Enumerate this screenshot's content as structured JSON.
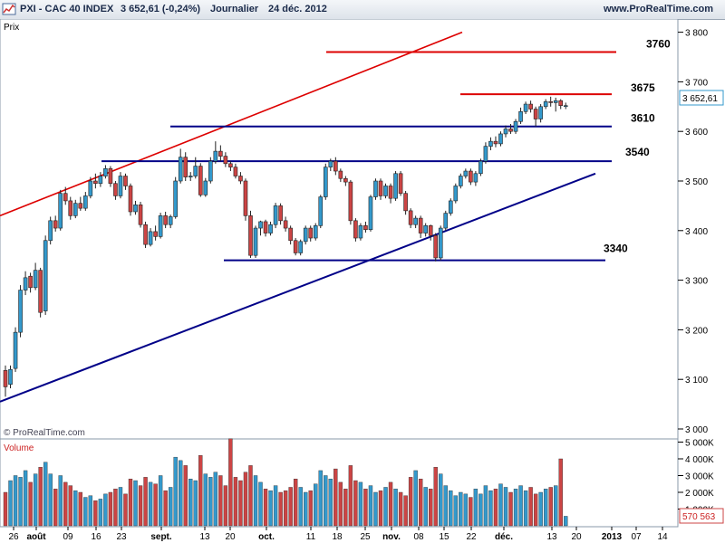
{
  "header": {
    "symbol": "PXI - CAC 40 INDEX",
    "quote": "3 652,61 (-0,24%)",
    "period": "Journalier",
    "date": "24 déc. 2012",
    "site": "www.ProRealTime.com"
  },
  "price_label": "Prix",
  "copyright": "© ProRealTime.com",
  "volume_label": "Volume",
  "current_price_tag": "3 652,61",
  "current_volume_tag": "570 563",
  "colors": {
    "up": "#3399cc",
    "down": "#cc4444",
    "support": "#000088",
    "resistance": "#dd0000"
  },
  "chart_data": {
    "type": "candlestick",
    "price_ylim": [
      3000,
      3800
    ],
    "price_ticks": [
      "3 000",
      "3 100",
      "3 200",
      "3 300",
      "3 400",
      "3 500",
      "3 600",
      "3 700",
      "3 800"
    ],
    "volume_ticks": [
      "1 000K",
      "2 000K",
      "3 000K",
      "4 000K",
      "5 000K"
    ],
    "x_ticks": [
      "26",
      "août",
      "09",
      "16",
      "23",
      "sept.",
      "13",
      "20",
      "oct.",
      "11",
      "18",
      "25",
      "nov.",
      "08",
      "15",
      "22",
      "déc.",
      "13",
      "20",
      "2013",
      "07",
      "14"
    ],
    "level_labels": [
      "3760",
      "3675",
      "3610",
      "3540",
      "3340"
    ],
    "candles": [
      [
        3118,
        3085,
        3128,
        3065,
        2000
      ],
      [
        3090,
        3120,
        3128,
        3082,
        2700
      ],
      [
        3122,
        3195,
        3205,
        3115,
        3000
      ],
      [
        3195,
        3280,
        3290,
        3185,
        2900
      ],
      [
        3280,
        3305,
        3318,
        3270,
        3300
      ],
      [
        3308,
        3285,
        3315,
        3275,
        2600
      ],
      [
        3285,
        3320,
        3335,
        3280,
        3100
      ],
      [
        3320,
        3235,
        3325,
        3225,
        3500
      ],
      [
        3238,
        3380,
        3390,
        3230,
        3800
      ],
      [
        3380,
        3420,
        3428,
        3372,
        3100
      ],
      [
        3420,
        3405,
        3430,
        3398,
        2200
      ],
      [
        3405,
        3475,
        3482,
        3400,
        3000
      ],
      [
        3475,
        3460,
        3488,
        3452,
        2600
      ],
      [
        3460,
        3430,
        3468,
        3422,
        2400
      ],
      [
        3430,
        3455,
        3462,
        3425,
        2100
      ],
      [
        3455,
        3445,
        3468,
        3440,
        2000
      ],
      [
        3445,
        3470,
        3478,
        3440,
        1700
      ],
      [
        3470,
        3500,
        3508,
        3465,
        1800
      ],
      [
        3500,
        3495,
        3515,
        3485,
        1500
      ],
      [
        3495,
        3510,
        3518,
        3488,
        1600
      ],
      [
        3510,
        3525,
        3532,
        3505,
        1900
      ],
      [
        3525,
        3495,
        3530,
        3488,
        2000
      ],
      [
        3495,
        3470,
        3500,
        3462,
        2200
      ],
      [
        3470,
        3510,
        3518,
        3465,
        2300
      ],
      [
        3510,
        3490,
        3515,
        3482,
        1900
      ],
      [
        3490,
        3438,
        3495,
        3430,
        2800
      ],
      [
        3438,
        3452,
        3460,
        3432,
        2700
      ],
      [
        3452,
        3412,
        3458,
        3406,
        2400
      ],
      [
        3412,
        3372,
        3418,
        3365,
        2900
      ],
      [
        3372,
        3398,
        3405,
        3368,
        2600
      ],
      [
        3398,
        3388,
        3410,
        3380,
        2500
      ],
      [
        3388,
        3430,
        3436,
        3384,
        3000
      ],
      [
        3430,
        3412,
        3438,
        3405,
        2100
      ],
      [
        3412,
        3428,
        3432,
        3405,
        2300
      ],
      [
        3428,
        3500,
        3508,
        3424,
        4100
      ],
      [
        3500,
        3548,
        3565,
        3495,
        3900
      ],
      [
        3548,
        3508,
        3558,
        3500,
        3600
      ],
      [
        3508,
        3510,
        3518,
        3500,
        2800
      ],
      [
        3510,
        3530,
        3548,
        3505,
        2700
      ],
      [
        3530,
        3472,
        3536,
        3468,
        4200
      ],
      [
        3472,
        3500,
        3506,
        3468,
        3100
      ],
      [
        3500,
        3540,
        3548,
        3495,
        2900
      ],
      [
        3540,
        3560,
        3580,
        3535,
        3200
      ],
      [
        3560,
        3550,
        3572,
        3540,
        3000
      ],
      [
        3550,
        3535,
        3558,
        3528,
        2400
      ],
      [
        3535,
        3528,
        3540,
        3520,
        5200
      ],
      [
        3528,
        3510,
        3535,
        3505,
        2900
      ],
      [
        3510,
        3500,
        3518,
        3494,
        2700
      ],
      [
        3500,
        3430,
        3505,
        3420,
        3200
      ],
      [
        3430,
        3350,
        3440,
        3345,
        3600
      ],
      [
        3350,
        3405,
        3410,
        3345,
        3000
      ],
      [
        3405,
        3418,
        3420,
        3390,
        2600
      ],
      [
        3418,
        3395,
        3422,
        3388,
        2200
      ],
      [
        3395,
        3412,
        3418,
        3390,
        2100
      ],
      [
        3412,
        3450,
        3456,
        3405,
        2400
      ],
      [
        3450,
        3420,
        3455,
        3412,
        2000
      ],
      [
        3420,
        3405,
        3428,
        3398,
        2100
      ],
      [
        3405,
        3380,
        3410,
        3372,
        2300
      ],
      [
        3380,
        3355,
        3385,
        3350,
        2800
      ],
      [
        3355,
        3378,
        3382,
        3350,
        2300
      ],
      [
        3378,
        3405,
        3410,
        3372,
        2000
      ],
      [
        3405,
        3385,
        3410,
        3378,
        2100
      ],
      [
        3385,
        3410,
        3415,
        3380,
        2500
      ],
      [
        3410,
        3468,
        3472,
        3405,
        3300
      ],
      [
        3468,
        3528,
        3535,
        3462,
        3000
      ],
      [
        3528,
        3540,
        3545,
        3520,
        2800
      ],
      [
        3540,
        3520,
        3548,
        3512,
        3400
      ],
      [
        3520,
        3505,
        3525,
        3498,
        2600
      ],
      [
        3505,
        3498,
        3510,
        3490,
        2200
      ],
      [
        3498,
        3420,
        3502,
        3412,
        3600
      ],
      [
        3420,
        3385,
        3425,
        3378,
        2700
      ],
      [
        3385,
        3410,
        3415,
        3380,
        2600
      ],
      [
        3410,
        3402,
        3418,
        3396,
        2200
      ],
      [
        3402,
        3468,
        3472,
        3398,
        2400
      ],
      [
        3468,
        3500,
        3505,
        3462,
        2000
      ],
      [
        3500,
        3470,
        3505,
        3462,
        2100
      ],
      [
        3470,
        3490,
        3495,
        3465,
        2300
      ],
      [
        3490,
        3465,
        3495,
        3455,
        2600
      ],
      [
        3465,
        3515,
        3520,
        3460,
        2200
      ],
      [
        3515,
        3475,
        3520,
        3470,
        2000
      ],
      [
        3475,
        3440,
        3480,
        3432,
        1800
      ],
      [
        3440,
        3412,
        3445,
        3405,
        2900
      ],
      [
        3412,
        3425,
        3430,
        3405,
        3300
      ],
      [
        3425,
        3395,
        3430,
        3385,
        2800
      ],
      [
        3395,
        3410,
        3415,
        3388,
        2300
      ],
      [
        3410,
        3390,
        3412,
        3380,
        2200
      ],
      [
        3390,
        3345,
        3395,
        3338,
        3500
      ],
      [
        3345,
        3405,
        3410,
        3340,
        3100
      ],
      [
        3405,
        3435,
        3440,
        3400,
        2400
      ],
      [
        3435,
        3460,
        3465,
        3430,
        2100
      ],
      [
        3460,
        3490,
        3495,
        3455,
        1800
      ],
      [
        3490,
        3510,
        3515,
        3485,
        2000
      ],
      [
        3510,
        3520,
        3525,
        3505,
        1900
      ],
      [
        3520,
        3498,
        3525,
        3492,
        1700
      ],
      [
        3498,
        3515,
        3520,
        3490,
        2200
      ],
      [
        3515,
        3540,
        3545,
        3510,
        1900
      ],
      [
        3540,
        3570,
        3578,
        3535,
        2400
      ],
      [
        3570,
        3580,
        3588,
        3562,
        2100
      ],
      [
        3580,
        3575,
        3590,
        3568,
        2200
      ],
      [
        3575,
        3595,
        3600,
        3570,
        2500
      ],
      [
        3595,
        3605,
        3612,
        3588,
        2300
      ],
      [
        3605,
        3600,
        3615,
        3595,
        2000
      ],
      [
        3600,
        3620,
        3625,
        3595,
        2200
      ],
      [
        3620,
        3640,
        3648,
        3615,
        2400
      ],
      [
        3640,
        3655,
        3660,
        3635,
        2100
      ],
      [
        3655,
        3645,
        3662,
        3638,
        2300
      ],
      [
        3645,
        3625,
        3650,
        3610,
        1900
      ],
      [
        3625,
        3650,
        3655,
        3618,
        2000
      ],
      [
        3650,
        3660,
        3665,
        3645,
        2200
      ],
      [
        3660,
        3658,
        3670,
        3650,
        2300
      ],
      [
        3658,
        3662,
        3668,
        3640,
        2400
      ],
      [
        3662,
        3652,
        3665,
        3645,
        4000
      ],
      [
        3652,
        3652,
        3658,
        3645,
        570
      ]
    ]
  }
}
